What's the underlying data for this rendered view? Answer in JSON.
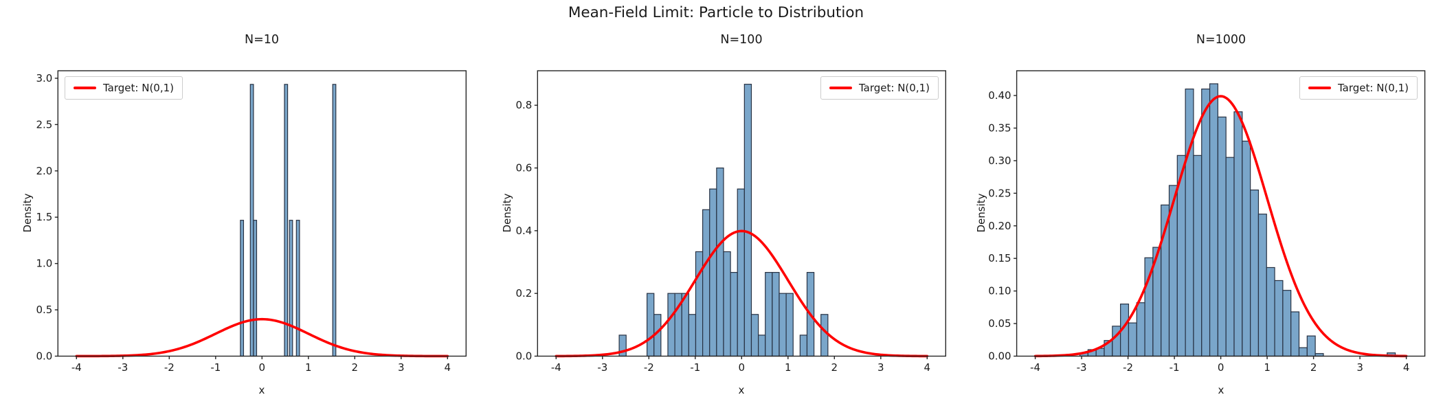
{
  "figure": {
    "suptitle": "Mean-Field Limit: Particle to Distribution",
    "xlabel": "x",
    "ylabel": "Density",
    "legend_label": "Target: N(0,1)"
  },
  "colors": {
    "bar_fill": "#7aa6ca",
    "bar_edge": "#273142",
    "curve": "#ff0000",
    "text": "#1a1a1a",
    "spine": "#262626",
    "legend_border": "#cccccc"
  },
  "chart_data": [
    {
      "type": "bar",
      "title": "N=10",
      "xlabel": "x",
      "ylabel": "Density",
      "xlim": [
        -4.4,
        4.4
      ],
      "ylim": [
        0,
        3.081
      ],
      "xticks": {
        "values": [
          -4,
          -3,
          -2,
          -1,
          0,
          1,
          2,
          3,
          4
        ],
        "labels": [
          "-4",
          "-3",
          "-2",
          "-1",
          "0",
          "1",
          "2",
          "3",
          "4"
        ]
      },
      "yticks": {
        "values": [
          0.0,
          0.5,
          1.0,
          1.5,
          2.0,
          2.5,
          3.0
        ],
        "labels": [
          "0.0",
          "0.5",
          "1.0",
          "1.5",
          "2.0",
          "2.5",
          "3.0"
        ]
      },
      "bin_width": 0.068,
      "legend": {
        "label": "Target: N(0,1)",
        "position": "upper-left"
      },
      "grid": false,
      "bars": [
        [
          -0.432,
          1.467
        ],
        [
          -0.218,
          2.934
        ],
        [
          -0.15,
          1.467
        ],
        [
          0.518,
          2.934
        ],
        [
          0.625,
          1.467
        ],
        [
          0.775,
          1.467
        ],
        [
          1.558,
          2.934
        ]
      ],
      "curve": {
        "name": "Target: N(0,1)",
        "distribution": "normal-pdf",
        "mean": 0,
        "std": 1,
        "x_range": [
          -4,
          4
        ],
        "peak": 0.3989
      }
    },
    {
      "type": "bar",
      "title": "N=100",
      "xlabel": "x",
      "ylabel": "Density",
      "xlim": [
        -4.4,
        4.4
      ],
      "ylim": [
        0,
        0.91
      ],
      "xticks": {
        "values": [
          -4,
          -3,
          -2,
          -1,
          0,
          1,
          2,
          3,
          4
        ],
        "labels": [
          "-4",
          "-3",
          "-2",
          "-1",
          "0",
          "1",
          "2",
          "3",
          "4"
        ]
      },
      "yticks": {
        "values": [
          0.0,
          0.2,
          0.4,
          0.6,
          0.8
        ],
        "labels": [
          "0.0",
          "0.2",
          "0.4",
          "0.6",
          "0.8"
        ]
      },
      "bin_width": 0.15,
      "legend": {
        "label": "Target: N(0,1)",
        "position": "upper-right"
      },
      "grid": false,
      "bars": [
        [
          -2.565,
          0.067
        ],
        [
          -1.965,
          0.2
        ],
        [
          -1.815,
          0.133
        ],
        [
          -1.515,
          0.2
        ],
        [
          -1.365,
          0.2
        ],
        [
          -1.215,
          0.2
        ],
        [
          -1.065,
          0.133
        ],
        [
          -0.915,
          0.333
        ],
        [
          -0.765,
          0.467
        ],
        [
          -0.615,
          0.533
        ],
        [
          -0.465,
          0.6
        ],
        [
          -0.315,
          0.333
        ],
        [
          -0.165,
          0.267
        ],
        [
          -0.015,
          0.533
        ],
        [
          0.135,
          0.867
        ],
        [
          0.285,
          0.133
        ],
        [
          0.435,
          0.067
        ],
        [
          0.585,
          0.267
        ],
        [
          0.735,
          0.267
        ],
        [
          0.885,
          0.2
        ],
        [
          1.035,
          0.2
        ],
        [
          1.335,
          0.067
        ],
        [
          1.485,
          0.267
        ],
        [
          1.785,
          0.133
        ]
      ],
      "curve": {
        "name": "Target: N(0,1)",
        "distribution": "normal-pdf",
        "mean": 0,
        "std": 1,
        "x_range": [
          -4,
          4
        ],
        "peak": 0.3989
      }
    },
    {
      "type": "bar",
      "title": "N=1000",
      "xlabel": "x",
      "ylabel": "Density",
      "xlim": [
        -4.4,
        4.4
      ],
      "ylim": [
        0,
        0.438
      ],
      "xticks": {
        "values": [
          -4,
          -3,
          -2,
          -1,
          0,
          1,
          2,
          3,
          4
        ],
        "labels": [
          "-4",
          "-3",
          "-2",
          "-1",
          "0",
          "1",
          "2",
          "3",
          "4"
        ]
      },
      "yticks": {
        "values": [
          0.0,
          0.05,
          0.1,
          0.15,
          0.2,
          0.25,
          0.3,
          0.35,
          0.4
        ],
        "labels": [
          "0.00",
          "0.05",
          "0.10",
          "0.15",
          "0.20",
          "0.25",
          "0.30",
          "0.35",
          "0.40"
        ]
      },
      "bin_width": 0.175,
      "legend": {
        "label": "Target: N(0,1)",
        "position": "upper-right"
      },
      "grid": false,
      "bars": [
        [
          -2.95,
          0.005
        ],
        [
          -2.775,
          0.01
        ],
        [
          -2.6,
          0.012
        ],
        [
          -2.425,
          0.024
        ],
        [
          -2.25,
          0.046
        ],
        [
          -2.075,
          0.08
        ],
        [
          -1.9,
          0.051
        ],
        [
          -1.725,
          0.082
        ],
        [
          -1.55,
          0.151
        ],
        [
          -1.375,
          0.167
        ],
        [
          -1.2,
          0.232
        ],
        [
          -1.025,
          0.262
        ],
        [
          -0.85,
          0.308
        ],
        [
          -0.675,
          0.41
        ],
        [
          -0.5,
          0.308
        ],
        [
          -0.325,
          0.41
        ],
        [
          -0.15,
          0.418
        ],
        [
          0.025,
          0.367
        ],
        [
          0.2,
          0.305
        ],
        [
          0.375,
          0.375
        ],
        [
          0.55,
          0.33
        ],
        [
          0.725,
          0.255
        ],
        [
          0.9,
          0.218
        ],
        [
          1.075,
          0.136
        ],
        [
          1.25,
          0.116
        ],
        [
          1.425,
          0.101
        ],
        [
          1.6,
          0.068
        ],
        [
          1.775,
          0.013
        ],
        [
          1.95,
          0.031
        ],
        [
          2.125,
          0.004
        ],
        [
          3.675,
          0.005
        ]
      ],
      "curve": {
        "name": "Target: N(0,1)",
        "distribution": "normal-pdf",
        "mean": 0,
        "std": 1,
        "x_range": [
          -4,
          4
        ],
        "peak": 0.3989
      }
    }
  ]
}
